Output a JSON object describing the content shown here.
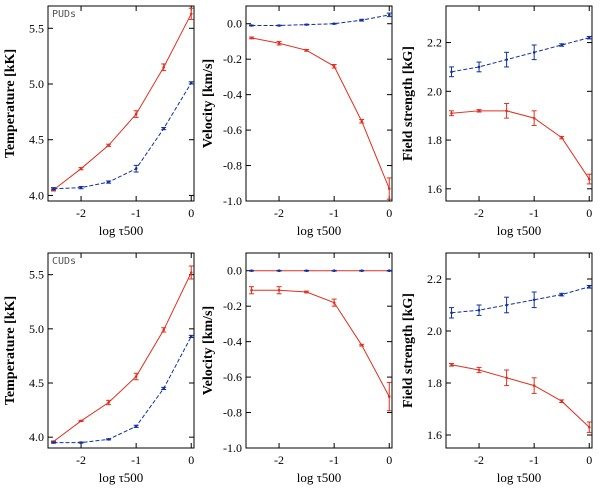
{
  "figure": {
    "tags": [
      "PUDs",
      "CUDs"
    ]
  },
  "colors": {
    "red": "#e03020",
    "blue": "#1030a0"
  },
  "chart_data": [
    {
      "type": "line",
      "row": 0,
      "col": 0,
      "tag": "PUDs",
      "ylabel": "Temperature [kK]",
      "xlabel": "log τ500",
      "xlim": [
        -2.6,
        0.05
      ],
      "ylim": [
        3.95,
        5.7
      ],
      "xticks": [
        -2,
        -1,
        0
      ],
      "xtick_labels": [
        "-2",
        "-1",
        "0"
      ],
      "yticks": [
        4.0,
        4.5,
        5.0,
        5.5
      ],
      "ytick_labels": [
        "4.0",
        "4.5",
        "5.0",
        "5.5"
      ],
      "series": [
        {
          "name": "red",
          "color": "red",
          "style": "solid",
          "x": [
            -2.5,
            -2.0,
            -1.5,
            -1.0,
            -0.5,
            0.0
          ],
          "y": [
            4.05,
            4.24,
            4.45,
            4.73,
            5.15,
            5.63
          ],
          "err": [
            0.01,
            0.01,
            0.01,
            0.03,
            0.03,
            0.05
          ]
        },
        {
          "name": "blue",
          "color": "blue",
          "style": "dashed",
          "x": [
            -2.5,
            -2.0,
            -1.5,
            -1.0,
            -0.5,
            0.0
          ],
          "y": [
            4.06,
            4.07,
            4.12,
            4.24,
            4.6,
            5.01
          ],
          "err": [
            0.01,
            0.01,
            0.01,
            0.03,
            0.01,
            0.01
          ]
        }
      ]
    },
    {
      "type": "line",
      "row": 0,
      "col": 1,
      "ylabel": "Velocity [km/s]",
      "xlabel": "log τ500",
      "xlim": [
        -2.6,
        0.05
      ],
      "ylim": [
        -1.0,
        0.1
      ],
      "xticks": [
        -2,
        -1,
        0
      ],
      "xtick_labels": [
        "-2",
        "-1",
        "0"
      ],
      "yticks": [
        -1.0,
        -0.8,
        -0.6,
        -0.4,
        -0.2,
        0.0
      ],
      "ytick_labels": [
        "-1.0",
        "-0.8",
        "-0.6",
        "-0.4",
        "-0.2",
        "0.0"
      ],
      "series": [
        {
          "name": "red",
          "color": "red",
          "style": "solid",
          "x": [
            -2.5,
            -2.0,
            -1.5,
            -1.0,
            -0.5,
            0.0
          ],
          "y": [
            -0.08,
            -0.11,
            -0.15,
            -0.24,
            -0.55,
            -0.93
          ],
          "err": [
            0.005,
            0.01,
            0.005,
            0.01,
            0.01,
            0.06
          ]
        },
        {
          "name": "blue",
          "color": "blue",
          "style": "dashed",
          "x": [
            -2.5,
            -2.0,
            -1.5,
            -1.0,
            -0.5,
            0.0
          ],
          "y": [
            -0.01,
            -0.01,
            -0.005,
            0.0,
            0.02,
            0.05
          ],
          "err": [
            0.002,
            0.002,
            0.002,
            0.002,
            0.005,
            0.01
          ]
        }
      ]
    },
    {
      "type": "line",
      "row": 0,
      "col": 2,
      "ylabel": "Field strength [kG]",
      "xlabel": "log τ500",
      "xlim": [
        -2.6,
        0.05
      ],
      "ylim": [
        1.55,
        2.35
      ],
      "xticks": [
        -2,
        -1,
        0
      ],
      "xtick_labels": [
        "-2",
        "-1",
        "0"
      ],
      "yticks": [
        1.6,
        1.8,
        2.0,
        2.2
      ],
      "ytick_labels": [
        "1.6",
        "1.8",
        "2.0",
        "2.2"
      ],
      "series": [
        {
          "name": "red",
          "color": "red",
          "style": "solid",
          "x": [
            -2.5,
            -2.0,
            -1.5,
            -1.0,
            -0.5,
            0.0
          ],
          "y": [
            1.91,
            1.92,
            1.92,
            1.89,
            1.81,
            1.64
          ],
          "err": [
            0.01,
            0.005,
            0.03,
            0.03,
            0.005,
            0.02
          ]
        },
        {
          "name": "blue",
          "color": "blue",
          "style": "dashed",
          "x": [
            -2.5,
            -2.0,
            -1.5,
            -1.0,
            -0.5,
            0.0
          ],
          "y": [
            2.08,
            2.1,
            2.13,
            2.16,
            2.19,
            2.22
          ],
          "err": [
            0.02,
            0.02,
            0.03,
            0.03,
            0.005,
            0.005
          ]
        }
      ]
    },
    {
      "type": "line",
      "row": 1,
      "col": 0,
      "tag": "CUDs",
      "ylabel": "Temperature [kK]",
      "xlabel": "log τ500",
      "xlim": [
        -2.6,
        0.05
      ],
      "ylim": [
        3.9,
        5.7
      ],
      "xticks": [
        -2,
        -1,
        0
      ],
      "xtick_labels": [
        "-2",
        "-1",
        "0"
      ],
      "yticks": [
        4.0,
        4.5,
        5.0,
        5.5
      ],
      "ytick_labels": [
        "4.0",
        "4.5",
        "5.0",
        "5.5"
      ],
      "series": [
        {
          "name": "red",
          "color": "red",
          "style": "solid",
          "x": [
            -2.5,
            -2.0,
            -1.5,
            -1.0,
            -0.5,
            0.0
          ],
          "y": [
            3.96,
            4.15,
            4.32,
            4.56,
            4.99,
            5.52
          ],
          "err": [
            0.005,
            0.005,
            0.02,
            0.03,
            0.02,
            0.06
          ]
        },
        {
          "name": "blue",
          "color": "blue",
          "style": "dashed",
          "x": [
            -2.5,
            -2.0,
            -1.5,
            -1.0,
            -0.5,
            0.0
          ],
          "y": [
            3.95,
            3.95,
            3.98,
            4.1,
            4.45,
            4.93
          ],
          "err": [
            0.005,
            0.005,
            0.005,
            0.01,
            0.01,
            0.01
          ]
        }
      ]
    },
    {
      "type": "line",
      "row": 1,
      "col": 1,
      "ylabel": "Velocity [km/s]",
      "xlabel": "log τ500",
      "xlim": [
        -2.6,
        0.05
      ],
      "ylim": [
        -1.0,
        0.1
      ],
      "xticks": [
        -2,
        -1,
        0
      ],
      "xtick_labels": [
        "-2",
        "-1",
        "0"
      ],
      "yticks": [
        -1.0,
        -0.8,
        -0.6,
        -0.4,
        -0.2,
        0.0
      ],
      "ytick_labels": [
        "-1.0",
        "-0.8",
        "-0.6",
        "-0.4",
        "-0.2",
        "0.0"
      ],
      "series": [
        {
          "name": "red",
          "color": "red",
          "style": "solid",
          "x": [
            -2.5,
            -2.0,
            -1.5,
            -1.0,
            -0.5,
            0.0
          ],
          "y": [
            -0.11,
            -0.11,
            -0.12,
            -0.18,
            -0.42,
            -0.71
          ],
          "err": [
            0.02,
            0.02,
            0.005,
            0.02,
            0.005,
            0.08
          ]
        },
        {
          "name": "blue",
          "color": "blue",
          "style": "solid",
          "x": [
            -2.5,
            -2.0,
            -1.5,
            -1.0,
            -0.5,
            0.0
          ],
          "y": [
            0.0,
            0.0,
            0.0,
            0.0,
            0.0,
            0.0
          ],
          "err": [
            0.002,
            0.002,
            0.002,
            0.002,
            0.002,
            0.002
          ]
        }
      ]
    },
    {
      "type": "line",
      "row": 1,
      "col": 2,
      "ylabel": "Field strength [kG]",
      "xlabel": "log τ500",
      "xlim": [
        -2.6,
        0.05
      ],
      "ylim": [
        1.55,
        2.3
      ],
      "xticks": [
        -2,
        -1,
        0
      ],
      "xtick_labels": [
        "-2",
        "-1",
        "0"
      ],
      "yticks": [
        1.6,
        1.8,
        2.0,
        2.2
      ],
      "ytick_labels": [
        "1.6",
        "1.8",
        "2.0",
        "2.2"
      ],
      "series": [
        {
          "name": "red",
          "color": "red",
          "style": "solid",
          "x": [
            -2.5,
            -2.0,
            -1.5,
            -1.0,
            -0.5,
            0.0
          ],
          "y": [
            1.87,
            1.85,
            1.82,
            1.79,
            1.73,
            1.63
          ],
          "err": [
            0.005,
            0.01,
            0.03,
            0.03,
            0.005,
            0.02
          ]
        },
        {
          "name": "blue",
          "color": "blue",
          "style": "dashed",
          "x": [
            -2.5,
            -2.0,
            -1.5,
            -1.0,
            -0.5,
            0.0
          ],
          "y": [
            2.07,
            2.08,
            2.1,
            2.12,
            2.14,
            2.17
          ],
          "err": [
            0.02,
            0.02,
            0.03,
            0.03,
            0.005,
            0.005
          ]
        }
      ]
    }
  ]
}
